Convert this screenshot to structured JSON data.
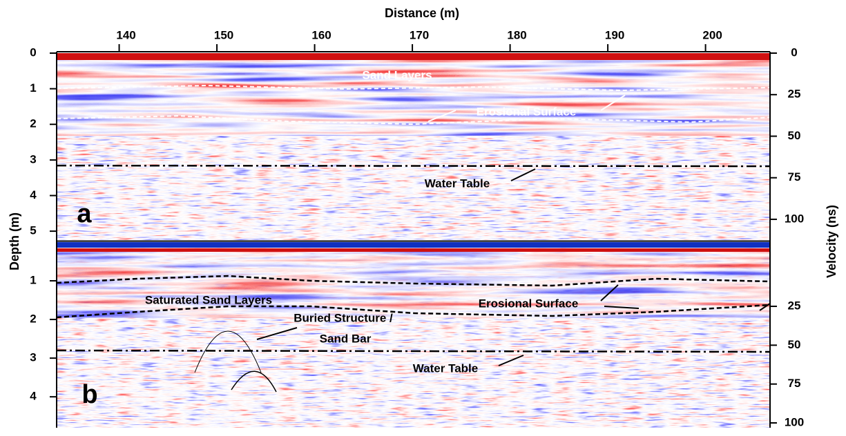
{
  "x_axis": {
    "title": "Distance (m)",
    "ticks": [
      140,
      150,
      160,
      170,
      180,
      190,
      200
    ],
    "lim": [
      133.6,
      206.6
    ]
  },
  "y_axis_title": "Depth (m)",
  "y2_axis_title": "Velocity (ns)",
  "panels": [
    {
      "label": "a",
      "depth_ticks": [
        0,
        1,
        2,
        3,
        4,
        5
      ],
      "depth_lim": [
        0,
        5.25
      ],
      "velocity_ticks": [
        0,
        25,
        50,
        75,
        100
      ],
      "velocity_lim": [
        0,
        112.5
      ],
      "annotations": [
        "Sand Layers",
        "Erosional Surface",
        "Water Table"
      ]
    },
    {
      "label": "b",
      "depth_ticks": [
        1,
        2,
        3,
        4
      ],
      "depth_lim": [
        0,
        4.8
      ],
      "velocity_ticks": [
        25,
        50,
        75,
        100
      ],
      "velocity_lim": [
        -16.3,
        103.1
      ],
      "annotations": [
        "Saturated Sand Layers",
        "Buried Structure /",
        "Sand Bar",
        "Erosional Surface",
        "Water Table"
      ]
    }
  ]
}
